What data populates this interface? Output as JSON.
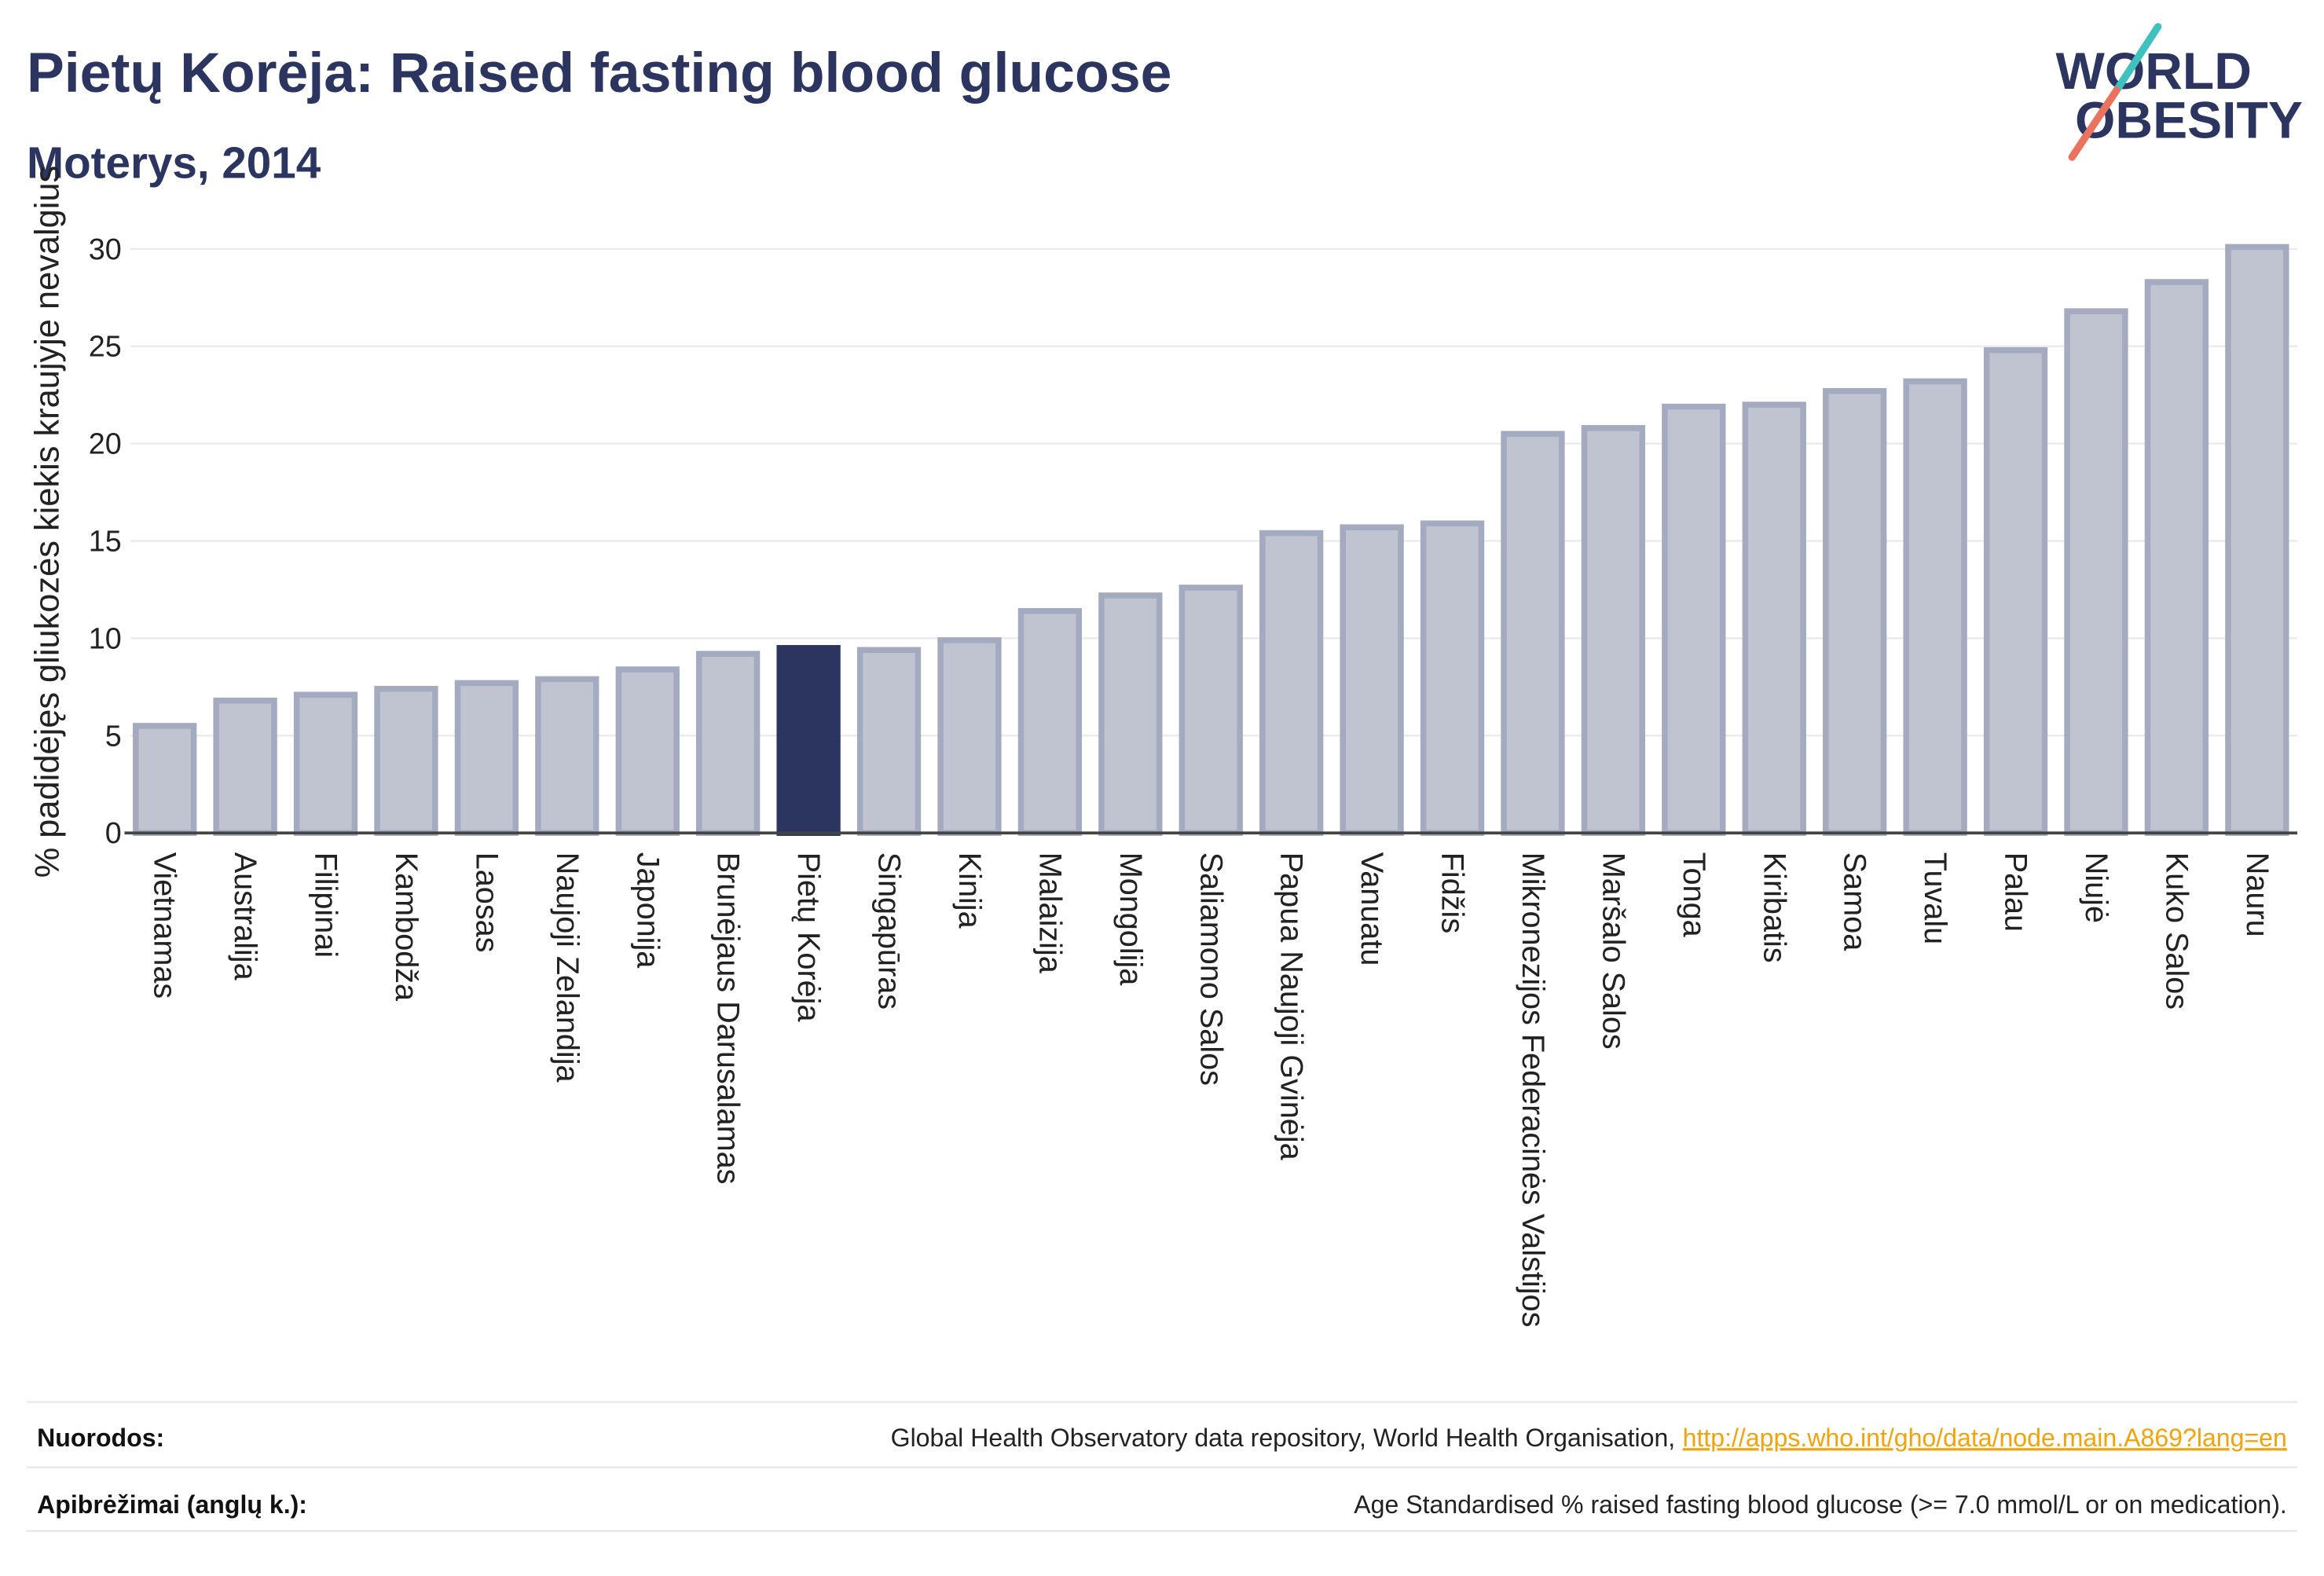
{
  "logo": {
    "line1": "WORLD",
    "line2": "OBESITY",
    "text_color": "#2b3560",
    "slash_top_color": "#3fc1c0",
    "slash_bottom_color": "#e9735f"
  },
  "chart_data": {
    "type": "bar",
    "title": "Pietų Korėja: Raised fasting blood glucose",
    "subtitle": "Moterys, 2014",
    "xlabel": "",
    "ylabel": "% padidėjęs gliukozės kiekis kraujyje nevalgius",
    "ylim": [
      0,
      32
    ],
    "yticks": [
      0,
      5,
      10,
      15,
      20,
      25,
      30
    ],
    "grid": true,
    "legend": "none",
    "categories": [
      "Vietnamas",
      "Australija",
      "Filipinai",
      "Kambodža",
      "Laosas",
      "Naujoji Zelandija",
      "Japonija",
      "Brunėjaus Darusalamas",
      "Pietų Korėja",
      "Singapūras",
      "Kinija",
      "Malaizija",
      "Mongolija",
      "Saliamono Salos",
      "Papua Naujoji Gvinėja",
      "Vanuatu",
      "Fidžis",
      "Mikronezijos Federacinės Valstijos",
      "Maršalo Salos",
      "Tonga",
      "Kiribatis",
      "Samoa",
      "Tuvalu",
      "Palau",
      "Niujė",
      "Kuko Salos",
      "Nauru"
    ],
    "values": [
      5.5,
      6.8,
      7.1,
      7.4,
      7.7,
      7.9,
      8.4,
      9.2,
      9.5,
      9.4,
      9.9,
      11.4,
      12.2,
      12.6,
      15.4,
      15.7,
      15.9,
      20.5,
      20.8,
      21.9,
      22.0,
      22.7,
      23.2,
      24.8,
      26.8,
      28.3,
      30.1
    ],
    "highlight": "Pietų Korėja",
    "colors": {
      "title": "#2b3560",
      "bar_fill": "#c0c3d0",
      "bar_stroke": "#a4aac0",
      "highlight_fill": "#2b3560",
      "axis": "#444444",
      "grid": "#e9e9ee"
    }
  },
  "footer": {
    "sources_label": "Nuorodos:",
    "sources_text": "Global Health Observatory data repository, World Health Organisation,",
    "sources_link": "http://apps.who.int/gho/data/node.main.A869?lang=en",
    "link_color": "#f0a30a",
    "definitions_label": "Apibrėžimai (anglų k.):",
    "definitions_text": "Age Standardised % raised fasting blood glucose (>= 7.0 mmol/L or on medication)."
  }
}
